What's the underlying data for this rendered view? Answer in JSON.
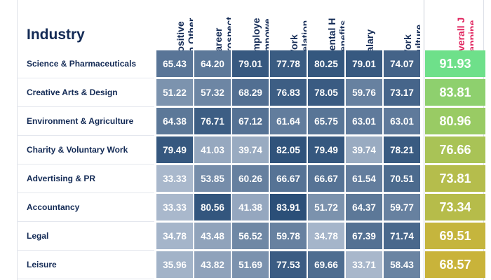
{
  "chart_data": {
    "type": "table",
    "title": "",
    "row_header": "Industry",
    "columns": [
      "Positive\non Other",
      "Career\nProspect",
      "Employe\nEmpowe",
      "Work\nRelation",
      "Mental H\nBenefits",
      "Salary",
      "Work\nCulture",
      "Overall J\nHappine"
    ],
    "rows": [
      {
        "industry": "Science & Pharmaceuticals",
        "values": [
          65.43,
          64.2,
          79.01,
          77.78,
          80.25,
          79.01,
          74.07
        ],
        "overall": 91.93
      },
      {
        "industry": "Creative Arts & Design",
        "values": [
          51.22,
          57.32,
          68.29,
          76.83,
          78.05,
          59.76,
          73.17
        ],
        "overall": 83.81
      },
      {
        "industry": "Environment & Agriculture",
        "values": [
          64.38,
          76.71,
          67.12,
          61.64,
          65.75,
          63.01,
          63.01
        ],
        "overall": 80.96
      },
      {
        "industry": "Charity & Voluntary Work",
        "values": [
          79.49,
          41.03,
          39.74,
          82.05,
          79.49,
          39.74,
          78.21
        ],
        "overall": 76.66
      },
      {
        "industry": "Advertising & PR",
        "values": [
          33.33,
          53.85,
          60.26,
          66.67,
          66.67,
          61.54,
          70.51
        ],
        "overall": 73.81
      },
      {
        "industry": "Accountancy",
        "values": [
          33.33,
          80.56,
          41.38,
          83.91,
          51.72,
          64.37,
          59.77
        ],
        "overall": 73.34
      },
      {
        "industry": "Legal",
        "values": [
          34.78,
          43.48,
          56.52,
          59.78,
          34.78,
          67.39,
          71.74
        ],
        "overall": 69.51
      },
      {
        "industry": "Leisure",
        "values": [
          35.96,
          43.82,
          51.69,
          77.53,
          69.66,
          33.71,
          58.43
        ],
        "overall": 68.57
      }
    ],
    "color_scale": {
      "low": "#a9b8cc",
      "high": "#2b4f78"
    },
    "overall_color_scale": {
      "low": "#c9b33a",
      "high": "#6ee08a"
    }
  },
  "display": {
    "rows": [
      {
        "industry": "Science & Pharmaceuticals",
        "values": [
          "65.43",
          "64.20",
          "79.01",
          "77.78",
          "80.25",
          "79.01",
          "74.07"
        ],
        "overall": "91.93"
      },
      {
        "industry": "Creative Arts & Design",
        "values": [
          "51.22",
          "57.32",
          "68.29",
          "76.83",
          "78.05",
          "59.76",
          "73.17"
        ],
        "overall": "83.81"
      },
      {
        "industry": "Environment & Agriculture",
        "values": [
          "64.38",
          "76.71",
          "67.12",
          "61.64",
          "65.75",
          "63.01",
          "63.01"
        ],
        "overall": "80.96"
      },
      {
        "industry": "Charity & Voluntary Work",
        "values": [
          "79.49",
          "41.03",
          "39.74",
          "82.05",
          "79.49",
          "39.74",
          "78.21"
        ],
        "overall": "76.66"
      },
      {
        "industry": "Advertising & PR",
        "values": [
          "33.33",
          "53.85",
          "60.26",
          "66.67",
          "66.67",
          "61.54",
          "70.51"
        ],
        "overall": "73.81"
      },
      {
        "industry": "Accountancy",
        "values": [
          "33.33",
          "80.56",
          "41.38",
          "83.91",
          "51.72",
          "64.37",
          "59.77"
        ],
        "overall": "73.34"
      },
      {
        "industry": "Legal",
        "values": [
          "34.78",
          "43.48",
          "56.52",
          "59.78",
          "34.78",
          "67.39",
          "71.74"
        ],
        "overall": "69.51"
      },
      {
        "industry": "Leisure",
        "values": [
          "35.96",
          "43.82",
          "51.69",
          "77.53",
          "69.66",
          "33.71",
          "58.43"
        ],
        "overall": "68.57"
      }
    ]
  }
}
